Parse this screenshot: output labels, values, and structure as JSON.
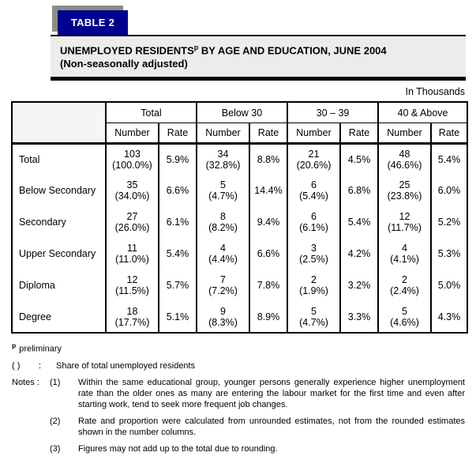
{
  "colors": {
    "badge_bg": "#000090",
    "badge_shadow": "#8c8c8c",
    "badge_text": "#ffffff",
    "title_bg": "#ececec",
    "border": "#000000",
    "text": "#000000"
  },
  "header": {
    "badge": "TABLE 2",
    "title_main": "UNEMPLOYED RESIDENTS",
    "title_sup": "p",
    "title_rest": " BY AGE AND EDUCATION, JUNE 2004",
    "subtitle": "(Non-seasonally adjusted)",
    "units": "In Thousands"
  },
  "table": {
    "groups": [
      "Total",
      "Below 30",
      "30 – 39",
      "40 & Above"
    ],
    "subheaders": [
      "Number",
      "Rate",
      "Number",
      "Rate",
      "Number",
      "Rate",
      "Number",
      "Rate"
    ],
    "rows": [
      {
        "label": "Total",
        "groups": [
          {
            "number": "103",
            "share": "(100.0%)",
            "rate": "5.9%"
          },
          {
            "number": "34",
            "share": "(32.8%)",
            "rate": "8.8%"
          },
          {
            "number": "21",
            "share": "(20.6%)",
            "rate": "4.5%"
          },
          {
            "number": "48",
            "share": "(46.6%)",
            "rate": "5.4%"
          }
        ]
      },
      {
        "label": "Below Secondary",
        "groups": [
          {
            "number": "35",
            "share": "(34.0%)",
            "rate": "6.6%"
          },
          {
            "number": "5",
            "share": "(4.7%)",
            "rate": "14.4%"
          },
          {
            "number": "6",
            "share": "(5.4%)",
            "rate": "6.8%"
          },
          {
            "number": "25",
            "share": "(23.8%)",
            "rate": "6.0%"
          }
        ]
      },
      {
        "label": "Secondary",
        "groups": [
          {
            "number": "27",
            "share": "(26.0%)",
            "rate": "6.1%"
          },
          {
            "number": "8",
            "share": "(8.2%)",
            "rate": "9.4%"
          },
          {
            "number": "6",
            "share": "(6.1%)",
            "rate": "5.4%"
          },
          {
            "number": "12",
            "share": "(11.7%)",
            "rate": "5.2%"
          }
        ]
      },
      {
        "label": "Upper Secondary",
        "groups": [
          {
            "number": "11",
            "share": "(11.0%)",
            "rate": "5.4%"
          },
          {
            "number": "4",
            "share": "(4.4%)",
            "rate": "6.6%"
          },
          {
            "number": "3",
            "share": "(2.5%)",
            "rate": "4.2%"
          },
          {
            "number": "4",
            "share": "(4.1%)",
            "rate": "5.3%"
          }
        ]
      },
      {
        "label": "Diploma",
        "groups": [
          {
            "number": "12",
            "share": "(11.5%)",
            "rate": "5.7%"
          },
          {
            "number": "7",
            "share": "(7.2%)",
            "rate": "7.8%"
          },
          {
            "number": "2",
            "share": "(1.9%)",
            "rate": "3.2%"
          },
          {
            "number": "2",
            "share": "(2.4%)",
            "rate": "5.0%"
          }
        ]
      },
      {
        "label": "Degree",
        "groups": [
          {
            "number": "18",
            "share": "(17.7%)",
            "rate": "5.1%"
          },
          {
            "number": "9",
            "share": "(8.3%)",
            "rate": "8.9%"
          },
          {
            "number": "5",
            "share": "(4.7%)",
            "rate": "3.3%"
          },
          {
            "number": "5",
            "share": "(4.6%)",
            "rate": "4.3%"
          }
        ]
      }
    ]
  },
  "footnotes": {
    "preliminary_sup": "p",
    "preliminary_text": "preliminary",
    "share_symbol": "(  )",
    "share_colon": ":",
    "share_text": "Share of total unemployed residents",
    "notes_label": "Notes :",
    "notes": [
      {
        "num": "(1)",
        "text": "Within the same educational group, younger persons generally experience higher unemployment rate than the older ones as many are entering the labour market for the first time and even after starting work, tend to seek more frequent job changes."
      },
      {
        "num": "(2)",
        "text": "Rate and proportion were calculated from unrounded estimates, not from the rounded estimates shown in the number columns."
      },
      {
        "num": "(3)",
        "text": "Figures may not add up to the total due to rounding."
      }
    ]
  }
}
